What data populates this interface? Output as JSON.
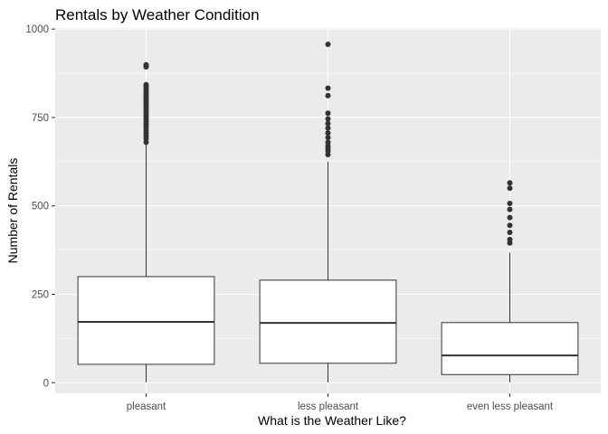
{
  "chart_data": {
    "type": "boxplot",
    "title": "Rentals by Weather Condition",
    "xlabel": "What is the Weather Like?",
    "ylabel": "Number of Rentals",
    "ylim": [
      -30,
      1003
    ],
    "yticks": [
      0,
      250,
      500,
      750,
      1000
    ],
    "grid": true,
    "legend": "none",
    "colors": {
      "panel_bg": "#ebebeb",
      "grid": "#ffffff",
      "box_fill": "#ffffff",
      "box_stroke": "#333333",
      "outlier": "#333333"
    },
    "categories": [
      "pleasant",
      "less pleasant",
      "even less pleasant"
    ],
    "boxes": [
      {
        "category": "pleasant",
        "min": 1,
        "q1": 52,
        "median": 172,
        "q3": 300,
        "max": 675,
        "outliers": [
          680,
          690,
          698,
          705,
          712,
          720,
          727,
          733,
          740,
          747,
          753,
          760,
          766,
          772,
          779,
          785,
          791,
          797,
          803,
          808,
          814,
          820,
          826,
          832,
          838,
          843,
          893,
          896,
          899
        ]
      },
      {
        "category": "less pleasant",
        "min": 1,
        "q1": 55,
        "median": 169,
        "q3": 290,
        "max": 625,
        "outliers": [
          645,
          655,
          662,
          670,
          680,
          693,
          706,
          720,
          733,
          746,
          762,
          812,
          833,
          957
        ]
      },
      {
        "category": "even less pleasant",
        "min": 1,
        "q1": 23,
        "median": 77,
        "q3": 170,
        "max": 368,
        "outliers": [
          395,
          405,
          425,
          445,
          467,
          490,
          507,
          550,
          565
        ]
      }
    ]
  }
}
